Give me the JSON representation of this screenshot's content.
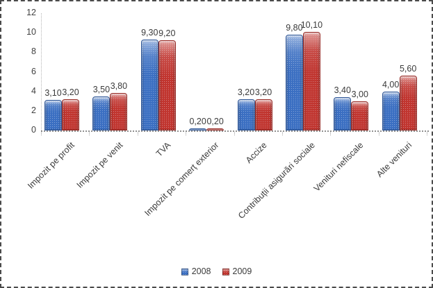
{
  "chart_data": {
    "type": "bar",
    "title": "",
    "xlabel": "",
    "ylabel": "",
    "categories": [
      "Impozit pe profit",
      "Impozit pe venit",
      "TVA",
      "Impozit pe comerț exterior",
      "Accize",
      "Contribuții asigurări sociale",
      "Venituri nefiscale",
      "Alte venituri"
    ],
    "series": [
      {
        "name": "2008",
        "color": "#3b6fc2",
        "values": [
          3.1,
          3.5,
          9.3,
          0.2,
          3.2,
          9.8,
          3.4,
          4.0
        ],
        "labels": [
          "3,10",
          "3,50",
          "9,30",
          "0,20",
          "3,20",
          "9,80",
          "3,40",
          "4,00"
        ]
      },
      {
        "name": "2009",
        "color": "#c1352f",
        "values": [
          3.2,
          3.8,
          9.2,
          0.2,
          3.2,
          10.1,
          3.0,
          5.6
        ],
        "labels": [
          "3,20",
          "3,80",
          "9,20",
          "0,20",
          "3,20",
          "10,10",
          "3,00",
          "5,60"
        ]
      }
    ],
    "ylim": [
      0,
      12
    ],
    "yticks": [
      0,
      2,
      4,
      6,
      8,
      10,
      12
    ],
    "grid": false,
    "legend_position": "bottom",
    "decimal_separator": ","
  }
}
